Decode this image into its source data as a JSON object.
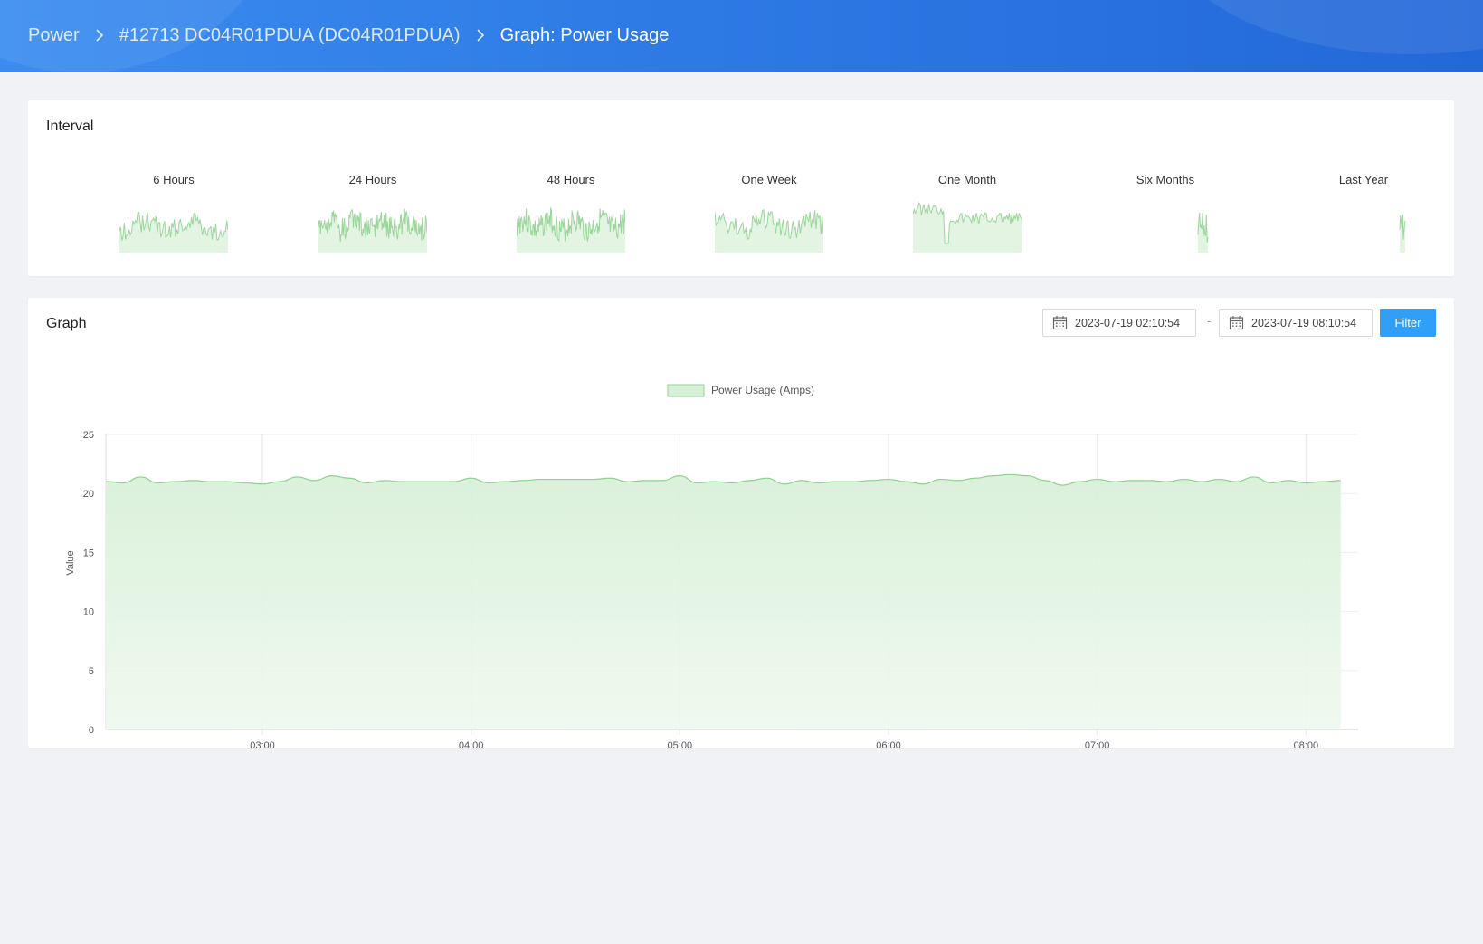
{
  "breadcrumb": {
    "items": [
      "Power",
      "#12713 DC04R01PDUA (DC04R01PDUA)",
      "Graph: Power Usage"
    ]
  },
  "interval_card": {
    "title": "Interval",
    "options": [
      "6 Hours",
      "24 Hours",
      "48 Hours",
      "One Week",
      "One Month",
      "Six Months",
      "Last Year"
    ]
  },
  "graph_card": {
    "title": "Graph",
    "from_date": "2023-07-19 02:10:54",
    "to_date": "2023-07-19 08:10:54",
    "separator": "-",
    "filter_label": "Filter"
  },
  "colors": {
    "accent": "#2f9ff8",
    "series_line": "#8fd18f",
    "series_fill": "#d8f0d8",
    "header": "#2f7ce6"
  },
  "chart_data": {
    "type": "area",
    "title": "",
    "xlabel": "",
    "ylabel": "Value",
    "ylim": [
      0,
      25
    ],
    "yticks": [
      0,
      5,
      10,
      15,
      20,
      25
    ],
    "xlim": [
      "02:15",
      "08:15"
    ],
    "xticks": [
      "03:00",
      "04:00",
      "05:00",
      "06:00",
      "07:00",
      "08:00"
    ],
    "grid": true,
    "legend": "top-center",
    "series": [
      {
        "name": "Power Usage (Amps)",
        "x": [
          "02:15",
          "02:20",
          "02:25",
          "02:30",
          "02:35",
          "02:40",
          "02:45",
          "02:50",
          "02:55",
          "03:00",
          "03:05",
          "03:10",
          "03:15",
          "03:20",
          "03:25",
          "03:30",
          "03:35",
          "03:40",
          "03:45",
          "03:50",
          "03:55",
          "04:00",
          "04:05",
          "04:10",
          "04:15",
          "04:20",
          "04:25",
          "04:30",
          "04:35",
          "04:40",
          "04:45",
          "04:50",
          "04:55",
          "05:00",
          "05:05",
          "05:10",
          "05:15",
          "05:20",
          "05:25",
          "05:30",
          "05:35",
          "05:40",
          "05:45",
          "05:50",
          "05:55",
          "06:00",
          "06:05",
          "06:10",
          "06:15",
          "06:20",
          "06:25",
          "06:30",
          "06:35",
          "06:40",
          "06:45",
          "06:50",
          "06:55",
          "07:00",
          "07:05",
          "07:10",
          "07:15",
          "07:20",
          "07:25",
          "07:30",
          "07:35",
          "07:40",
          "07:45",
          "07:50",
          "07:55",
          "08:00",
          "08:05",
          "08:10"
        ],
        "values": [
          21.0,
          20.9,
          21.4,
          20.9,
          21.0,
          21.1,
          21.0,
          21.0,
          20.9,
          20.8,
          21.0,
          21.4,
          21.1,
          21.5,
          21.3,
          20.9,
          21.1,
          21.0,
          21.0,
          21.0,
          21.0,
          21.3,
          20.9,
          21.0,
          21.1,
          21.2,
          21.2,
          21.2,
          21.2,
          21.3,
          21.0,
          21.1,
          21.1,
          21.5,
          20.9,
          21.0,
          20.9,
          21.1,
          21.3,
          20.8,
          21.1,
          20.9,
          21.0,
          21.0,
          21.1,
          21.2,
          21.0,
          20.8,
          21.2,
          21.1,
          21.3,
          21.5,
          21.6,
          21.5,
          21.1,
          20.7,
          21.0,
          21.2,
          21.0,
          21.1,
          21.1,
          21.0,
          21.2,
          21.0,
          21.2,
          21.0,
          21.4,
          20.9,
          21.1,
          20.9,
          21.0,
          21.1
        ]
      }
    ]
  }
}
